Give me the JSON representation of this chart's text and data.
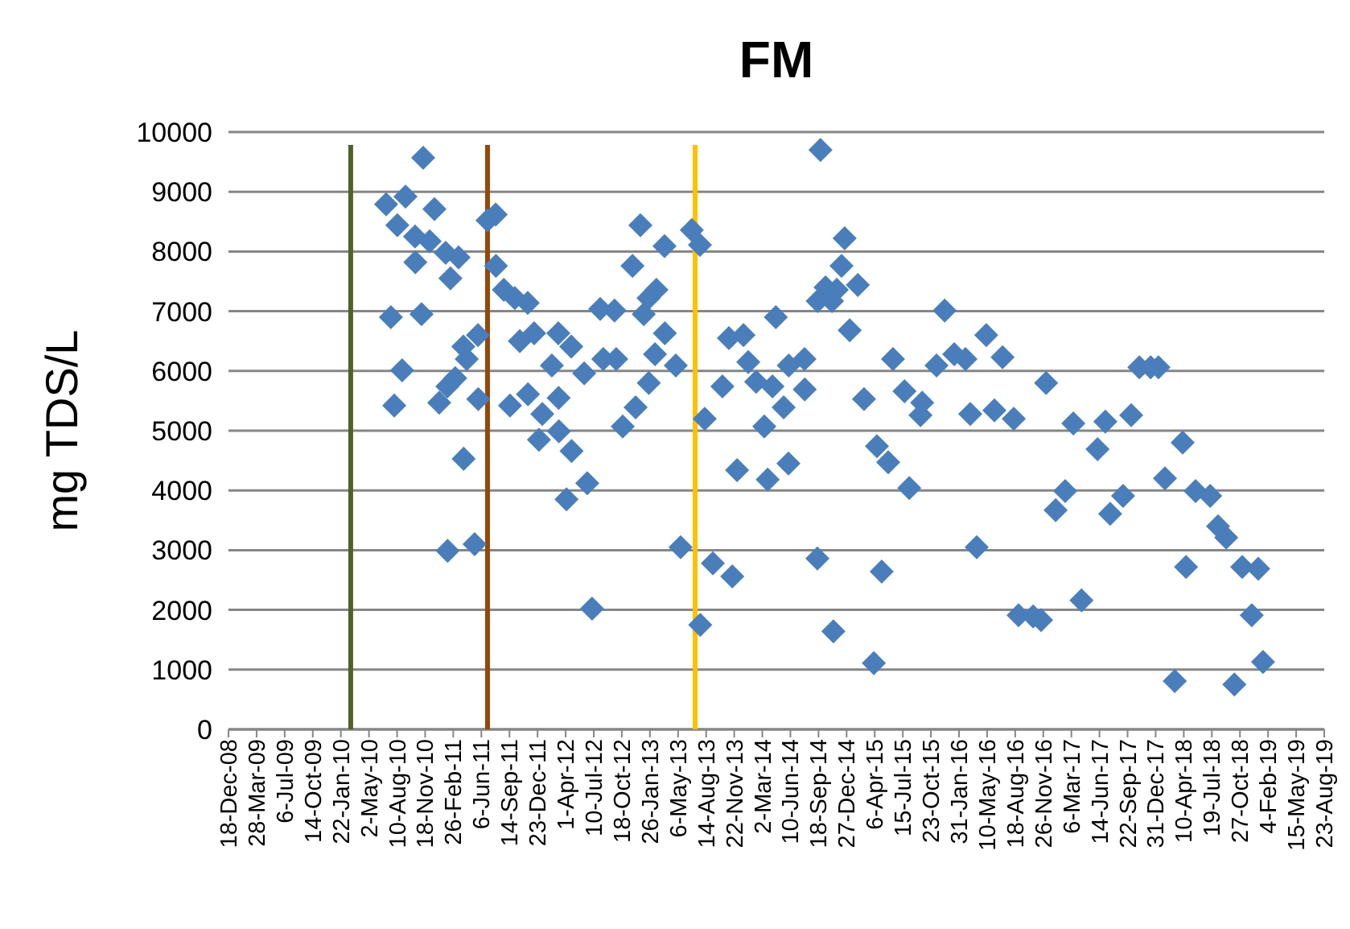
{
  "chart_data": {
    "type": "scatter",
    "title": "FM",
    "ylabel": "mg TDS/L",
    "marker": "diamond",
    "grid": "y",
    "xlim": [
      "2008-12-18",
      "2019-08-23"
    ],
    "ylim": [
      0,
      10000
    ],
    "yticks": [
      0,
      1000,
      2000,
      3000,
      4000,
      5000,
      6000,
      7000,
      8000,
      9000,
      10000
    ],
    "xticks": [
      {
        "value": "2008-12-18",
        "label": "18-Dec-08"
      },
      {
        "value": "2009-03-28",
        "label": "28-Mar-09"
      },
      {
        "value": "2009-07-06",
        "label": "6-Jul-09"
      },
      {
        "value": "2009-10-14",
        "label": "14-Oct-09"
      },
      {
        "value": "2010-01-22",
        "label": "22-Jan-10"
      },
      {
        "value": "2010-05-02",
        "label": "2-May-10"
      },
      {
        "value": "2010-08-10",
        "label": "10-Aug-10"
      },
      {
        "value": "2010-11-18",
        "label": "18-Nov-10"
      },
      {
        "value": "2011-02-26",
        "label": "26-Feb-11"
      },
      {
        "value": "2011-06-06",
        "label": "6-Jun-11"
      },
      {
        "value": "2011-09-14",
        "label": "14-Sep-11"
      },
      {
        "value": "2011-12-23",
        "label": "23-Dec-11"
      },
      {
        "value": "2012-04-01",
        "label": "1-Apr-12"
      },
      {
        "value": "2012-07-10",
        "label": "10-Jul-12"
      },
      {
        "value": "2012-10-18",
        "label": "18-Oct-12"
      },
      {
        "value": "2013-01-26",
        "label": "26-Jan-13"
      },
      {
        "value": "2013-05-06",
        "label": "6-May-13"
      },
      {
        "value": "2013-08-14",
        "label": "14-Aug-13"
      },
      {
        "value": "2013-11-22",
        "label": "22-Nov-13"
      },
      {
        "value": "2014-03-02",
        "label": "2-Mar-14"
      },
      {
        "value": "2014-06-10",
        "label": "10-Jun-14"
      },
      {
        "value": "2014-09-18",
        "label": "18-Sep-14"
      },
      {
        "value": "2014-12-27",
        "label": "27-Dec-14"
      },
      {
        "value": "2015-04-06",
        "label": "6-Apr-15"
      },
      {
        "value": "2015-07-15",
        "label": "15-Jul-15"
      },
      {
        "value": "2015-10-23",
        "label": "23-Oct-15"
      },
      {
        "value": "2016-01-31",
        "label": "31-Jan-16"
      },
      {
        "value": "2016-05-10",
        "label": "10-May-16"
      },
      {
        "value": "2016-08-18",
        "label": "18-Aug-16"
      },
      {
        "value": "2016-11-26",
        "label": "26-Nov-16"
      },
      {
        "value": "2017-03-06",
        "label": "6-Mar-17"
      },
      {
        "value": "2017-06-14",
        "label": "14-Jun-17"
      },
      {
        "value": "2017-09-22",
        "label": "22-Sep-17"
      },
      {
        "value": "2017-12-31",
        "label": "31-Dec-17"
      },
      {
        "value": "2018-04-10",
        "label": "10-Apr-18"
      },
      {
        "value": "2018-07-19",
        "label": "19-Jul-18"
      },
      {
        "value": "2018-10-27",
        "label": "27-Oct-18"
      },
      {
        "value": "2019-02-04",
        "label": "4-Feb-19"
      },
      {
        "value": "2019-05-15",
        "label": "15-May-19"
      },
      {
        "value": "2019-08-23",
        "label": "23-Aug-19"
      }
    ],
    "ref_lines": [
      {
        "axis": "x",
        "value": "2010-02-26",
        "color": "#4f6228"
      },
      {
        "axis": "x",
        "value": "2011-06-28",
        "color": "#974706"
      },
      {
        "axis": "x",
        "value": "2013-07-06",
        "color": "#ffc000"
      }
    ],
    "series": [
      {
        "color": "#4a7ebb",
        "x": [
          "2010-07-02",
          "2010-07-19",
          "2010-07-31",
          "2010-08-11",
          "2010-08-28",
          "2010-09-09",
          "2010-10-13",
          "2010-10-14",
          "2010-11-05",
          "2010-11-11",
          "2010-12-04",
          "2010-12-21",
          "2011-01-07",
          "2011-01-30",
          "2011-02-05",
          "2011-02-06",
          "2011-02-16",
          "2011-03-05",
          "2011-03-17",
          "2011-04-03",
          "2011-04-04",
          "2011-04-15",
          "2011-05-13",
          "2011-05-25",
          "2011-05-26",
          "2011-06-28",
          "2011-07-27",
          "2011-07-28",
          "2011-08-25",
          "2011-09-16",
          "2011-10-03",
          "2011-10-21",
          "2011-11-18",
          "2011-11-19",
          "2011-12-11",
          "2011-12-28",
          "2012-01-09",
          "2012-02-12",
          "2012-03-06",
          "2012-03-07",
          "2012-03-08",
          "2012-04-04",
          "2012-04-21",
          "2012-04-22",
          "2012-06-06",
          "2012-06-17",
          "2012-07-04",
          "2012-08-02",
          "2012-08-13",
          "2012-09-22",
          "2012-09-28",
          "2012-10-21",
          "2012-11-25",
          "2012-12-06",
          "2012-12-23",
          "2013-01-04",
          "2013-01-21",
          "2013-01-22",
          "2013-02-13",
          "2013-02-18",
          "2013-03-19",
          "2013-03-20",
          "2013-04-28",
          "2013-05-15",
          "2013-06-24",
          "2013-07-23",
          "2013-07-24",
          "2013-08-09",
          "2013-09-07",
          "2013-10-11",
          "2013-11-03",
          "2013-11-15",
          "2013-12-02",
          "2013-12-25",
          "2014-01-11",
          "2014-02-08",
          "2014-03-09",
          "2014-03-21",
          "2014-04-07",
          "2014-04-19",
          "2014-05-17",
          "2014-06-03",
          "2014-06-04",
          "2014-07-30",
          "2014-07-31",
          "2014-09-14",
          "2014-09-15",
          "2014-09-25",
          "2014-10-13",
          "2014-11-05",
          "2014-11-10",
          "2014-11-22",
          "2014-12-09",
          "2014-12-20",
          "2015-01-07",
          "2015-02-05",
          "2015-02-27",
          "2015-04-03",
          "2015-04-14",
          "2015-05-01",
          "2015-05-24",
          "2015-06-10",
          "2015-07-21",
          "2015-08-07",
          "2015-09-16",
          "2015-09-22",
          "2015-11-12",
          "2015-12-11",
          "2016-01-14",
          "2016-02-23",
          "2016-03-11",
          "2016-04-03",
          "2016-05-07",
          "2016-06-05",
          "2016-07-04",
          "2016-08-13",
          "2016-08-30",
          "2016-10-21",
          "2016-11-18",
          "2016-12-06",
          "2017-01-09",
          "2017-02-12",
          "2017-03-13",
          "2017-04-11",
          "2017-06-07",
          "2017-07-05",
          "2017-07-22",
          "2017-09-06",
          "2017-10-05",
          "2017-11-03",
          "2017-12-13",
          "2018-01-10",
          "2018-02-02",
          "2018-03-09",
          "2018-04-06",
          "2018-04-18",
          "2018-05-22",
          "2018-07-13",
          "2018-08-10",
          "2018-09-08",
          "2018-10-07",
          "2018-11-04",
          "2018-12-08",
          "2018-12-31",
          "2019-01-17"
        ],
        "values": [
          8790,
          6900,
          5420,
          8440,
          6010,
          8920,
          8250,
          7820,
          6950,
          9570,
          8170,
          8710,
          5470,
          7980,
          5740,
          2990,
          7550,
          5880,
          7900,
          6410,
          4530,
          6200,
          3100,
          6600,
          5530,
          8520,
          8620,
          7760,
          7360,
          5420,
          7220,
          6500,
          7140,
          5610,
          6630,
          4850,
          5280,
          6090,
          6630,
          5550,
          4990,
          3850,
          6410,
          4660,
          5960,
          4120,
          2020,
          7040,
          6200,
          7010,
          6200,
          5070,
          7760,
          5390,
          8440,
          6950,
          7220,
          5800,
          6280,
          7360,
          8090,
          6630,
          6090,
          3050,
          8360,
          8110,
          1750,
          5200,
          2780,
          5740,
          6550,
          2560,
          4340,
          6600,
          6150,
          5820,
          5070,
          4180,
          5740,
          6900,
          5390,
          4450,
          6090,
          6200,
          5690,
          2860,
          7170,
          9700,
          7400,
          7170,
          1640,
          7360,
          7760,
          8220,
          6680,
          7440,
          5530,
          1110,
          4740,
          2640,
          4470,
          6200,
          5660,
          4040,
          5260,
          5470,
          6090,
          7010,
          6280,
          6200,
          5280,
          3050,
          6600,
          5340,
          6230,
          5200,
          1910,
          1890,
          1830,
          5800,
          3670,
          3990,
          5120,
          2160,
          4690,
          5150,
          3610,
          3910,
          5260,
          6060,
          6060,
          6060,
          4200,
          810,
          4800,
          2720,
          3990,
          3910,
          3400,
          3210,
          750,
          2720,
          1910,
          2690,
          1130
        ]
      }
    ]
  }
}
